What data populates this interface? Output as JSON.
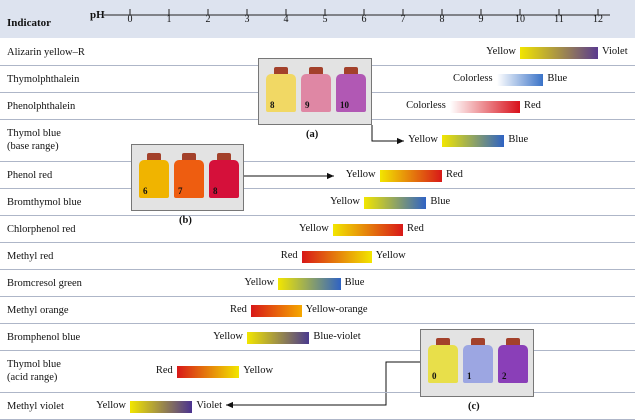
{
  "header": {
    "indicator_label": "Indicator",
    "ph_label": "pH"
  },
  "ph_ticks": [
    "0",
    "1",
    "2",
    "3",
    "4",
    "5",
    "6",
    "7",
    "8",
    "9",
    "10",
    "11",
    "12"
  ],
  "indicators": [
    {
      "name": "Alizarin yellow–R",
      "from": 10.0,
      "to": 12.0,
      "low": "Yellow",
      "high": "Violet",
      "c1": "#f2e600",
      "c2": "#5a3b8f"
    },
    {
      "name": "Thymolphthalein",
      "from": 9.4,
      "to": 10.6,
      "low": "Colorless",
      "high": "Blue",
      "c1": "#ffffff",
      "c2": "#3a73c8"
    },
    {
      "name": "Phenolphthalein",
      "from": 8.2,
      "to": 10.0,
      "low": "Colorless",
      "high": "Red",
      "c1": "#ffffff",
      "c2": "#d8101a"
    },
    {
      "name": "Thymol blue",
      "name2": "(base range)",
      "from": 8.0,
      "to": 9.6,
      "low": "Yellow",
      "high": "Blue",
      "c1": "#f2e600",
      "c2": "#2f63c4"
    },
    {
      "name": "Phenol red",
      "from": 6.4,
      "to": 8.0,
      "low": "Yellow",
      "high": "Red",
      "c1": "#f2e600",
      "c2": "#d81818"
    },
    {
      "name": "Bromthymol blue",
      "from": 6.0,
      "to": 7.6,
      "low": "Yellow",
      "high": "Blue",
      "c1": "#f2e600",
      "c2": "#2f63c4"
    },
    {
      "name": "Chlorphenol red",
      "from": 5.2,
      "to": 7.0,
      "low": "Yellow",
      "high": "Red",
      "c1": "#f2e600",
      "c2": "#d81818"
    },
    {
      "name": "Methyl red",
      "from": 4.4,
      "to": 6.2,
      "low": "Red",
      "high": "Yellow",
      "c1": "#d81818",
      "c2": "#f2e600"
    },
    {
      "name": "Bromcresol green",
      "from": 3.8,
      "to": 5.4,
      "low": "Yellow",
      "high": "Blue",
      "c1": "#f2e600",
      "c2": "#2f63c4"
    },
    {
      "name": "Methyl orange",
      "from": 3.1,
      "to": 4.4,
      "low": "Red",
      "high": "Yellow-orange",
      "c1": "#d81818",
      "c2": "#f5a800"
    },
    {
      "name": "Bromphenol blue",
      "from": 3.0,
      "to": 4.6,
      "low": "Yellow",
      "high": "Blue-violet",
      "c1": "#f2e600",
      "c2": "#4a3a8e"
    },
    {
      "name": "Thymol blue",
      "name2": "(acid range)",
      "from": 1.2,
      "to": 2.8,
      "low": "Red",
      "high": "Yellow",
      "c1": "#d81818",
      "c2": "#f2e600"
    },
    {
      "name": "Methyl violet",
      "from": 0.0,
      "to": 1.6,
      "low": "Yellow",
      "high": "Violet",
      "c1": "#f2e600",
      "c2": "#4a3290"
    }
  ],
  "photos": [
    {
      "caption": "(a)",
      "bottles": [
        {
          "label": "8",
          "color": "#f1d864"
        },
        {
          "label": "9",
          "color": "#df87a4"
        },
        {
          "label": "10",
          "color": "#b158b4"
        }
      ]
    },
    {
      "caption": "(b)",
      "bottles": [
        {
          "label": "6",
          "color": "#f0b400"
        },
        {
          "label": "7",
          "color": "#ee5d10"
        },
        {
          "label": "8",
          "color": "#d5103a"
        }
      ]
    },
    {
      "caption": "(c)",
      "bottles": [
        {
          "label": "0",
          "color": "#e8df4a"
        },
        {
          "label": "1",
          "color": "#9ca6e2"
        },
        {
          "label": "2",
          "color": "#8a3fb8"
        }
      ]
    }
  ]
}
